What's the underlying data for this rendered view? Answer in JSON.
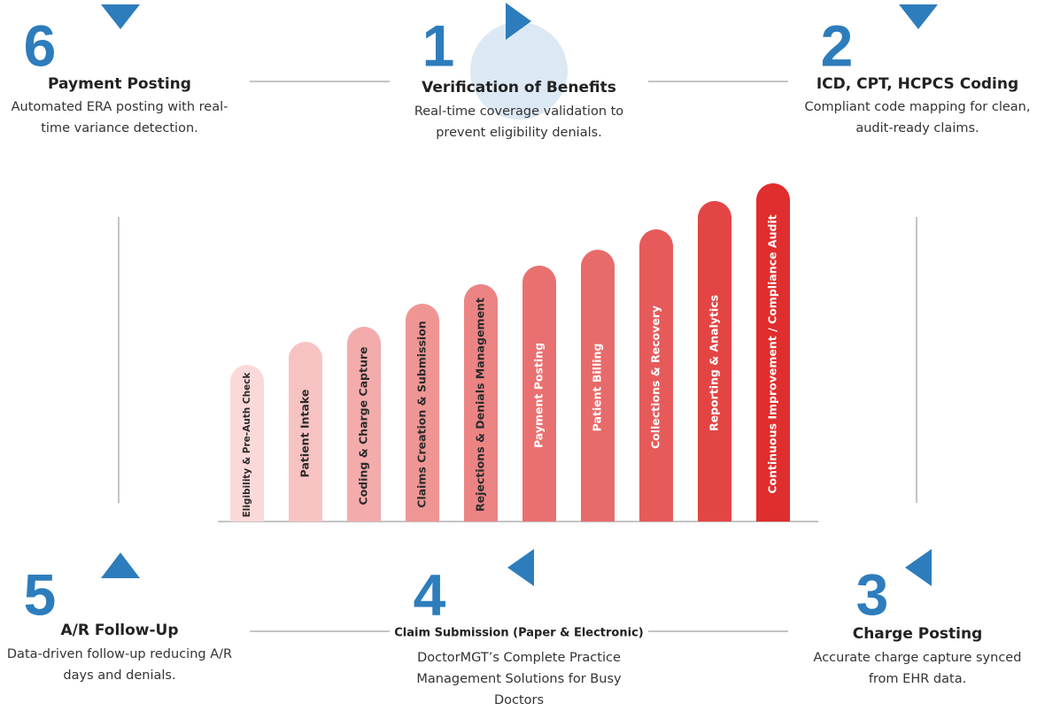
{
  "steps": [
    {
      "number": "6",
      "title": "Payment Posting",
      "description": [
        "Automated ERA posting with real-",
        "time variance detection."
      ]
    },
    {
      "number": "1",
      "title": "Verification of Benefits",
      "description": [
        "Real-time coverage validation to",
        "prevent eligibility denials."
      ]
    },
    {
      "number": "2",
      "title": "ICD, CPT, HCPCS Coding",
      "description": [
        "Compliant code mapping for clean,",
        "audit-ready claims."
      ]
    },
    {
      "number": "5",
      "title": "A/R Follow-Up",
      "description": [
        "Data-driven follow-up reducing A/R",
        "days and denials."
      ]
    },
    {
      "number": "4",
      "title": "Claim Submission (Paper & Electronic)",
      "description": [
        "DoctorMGT’s Complete Practice",
        "Management Solutions for Busy",
        "Doctors"
      ]
    },
    {
      "number": "3",
      "title": "Charge Posting",
      "description": [
        "Accurate charge capture synced",
        "from EHR data."
      ]
    }
  ],
  "bars": [
    "Eligibility & Pre-Auth Check",
    "Patient Intake",
    "Coding & Charge Capture",
    "Claims Creation & Submission",
    "Rejections & Denials Management",
    "Payment Posting",
    "Patient Billing",
    "Collections & Recovery",
    "Reporting & Analytics",
    "Continuous Improvement / Compliance Audit"
  ]
}
